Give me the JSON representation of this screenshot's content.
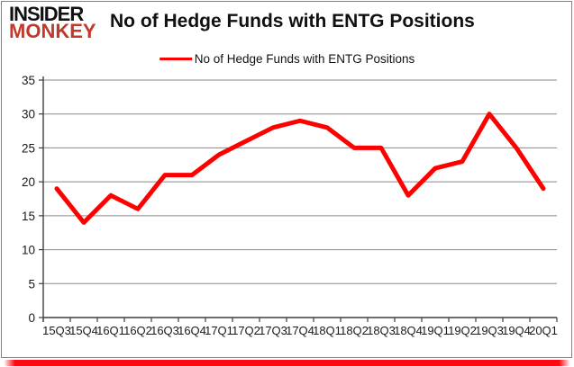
{
  "logo": {
    "line1": "INSIDER",
    "line2": "MONKEY"
  },
  "header": {
    "title": "No of Hedge Funds with ENTG Positions"
  },
  "legend": {
    "label": "No of Hedge Funds with ENTG Positions"
  },
  "chart_data": {
    "type": "line",
    "title": "No of Hedge Funds with ENTG Positions",
    "categories": [
      "15Q3",
      "15Q4",
      "16Q1",
      "16Q2",
      "16Q3",
      "16Q4",
      "17Q1",
      "17Q2",
      "17Q3",
      "17Q4",
      "18Q1",
      "18Q2",
      "18Q3",
      "18Q4",
      "19Q1",
      "19Q2",
      "19Q3",
      "19Q4",
      "20Q1"
    ],
    "series": [
      {
        "name": "No of Hedge Funds with ENTG Positions",
        "color": "#ff0000",
        "values": [
          19,
          14,
          18,
          16,
          21,
          21,
          24,
          26,
          28,
          29,
          28,
          25,
          25,
          18,
          22,
          23,
          30,
          25,
          19
        ]
      }
    ],
    "xlabel": "",
    "ylabel": "",
    "ylim": [
      0,
      35
    ],
    "y_ticks": [
      0,
      5,
      10,
      15,
      20,
      25,
      30,
      35
    ],
    "grid": "horizontal",
    "legend_position": "top-center"
  },
  "colors": {
    "line": "#ff0000",
    "grid": "#8a8a8a",
    "axis": "#3f3f3f",
    "logo_black": "#111111",
    "logo_red": "#c0392b",
    "bottom_bar": "#fb0a14",
    "frame_border": "#8f7d7d"
  }
}
